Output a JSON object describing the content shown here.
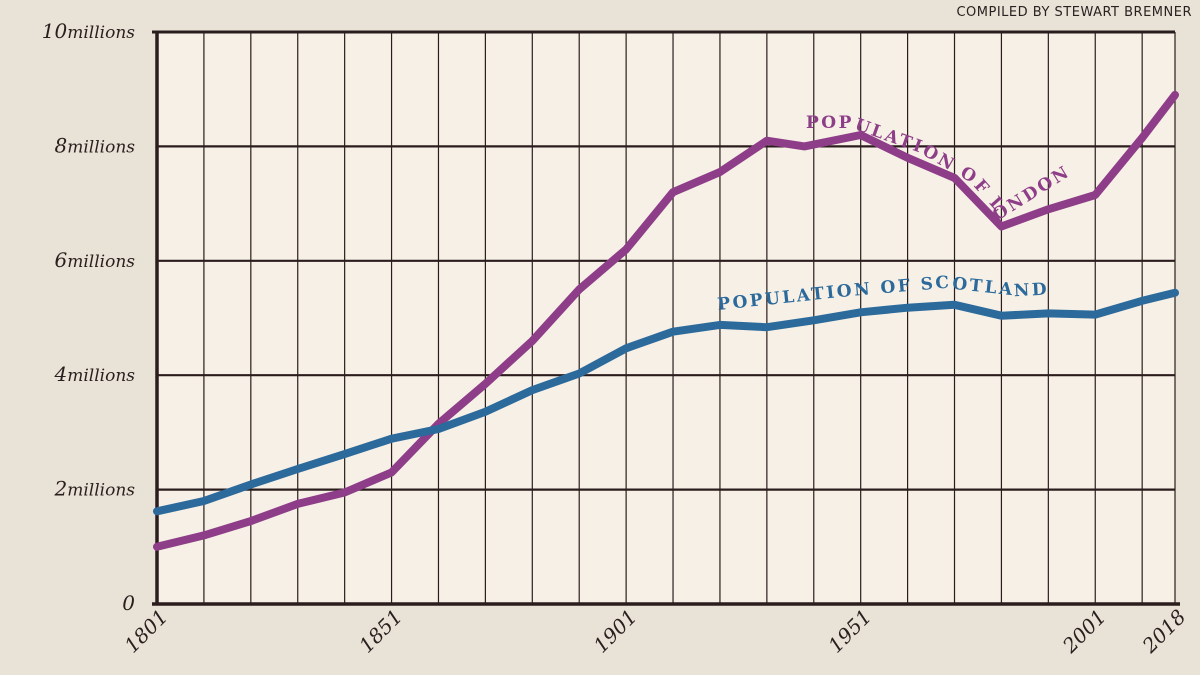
{
  "credit": "COMPILED BY STEWART BREMNER",
  "colors": {
    "background": "#e9e2d6",
    "plot_area": "#f6f0e6",
    "grid": "#2b1d1d",
    "london": "#8e3d88",
    "scotland": "#2c6a9c"
  },
  "chart_data": {
    "type": "line",
    "x_ticks": [
      {
        "value": 1801,
        "label": "1801"
      },
      {
        "value": 1851,
        "label": "1851"
      },
      {
        "value": 1901,
        "label": "1901"
      },
      {
        "value": 1951,
        "label": "1951"
      },
      {
        "value": 2001,
        "label": "2001"
      },
      {
        "value": 2018,
        "label": "2018"
      }
    ],
    "y_ticks": [
      {
        "value": 0,
        "num": "0",
        "unit": ""
      },
      {
        "value": 2,
        "num": "2",
        "unit": "millions"
      },
      {
        "value": 4,
        "num": "4",
        "unit": "millions"
      },
      {
        "value": 6,
        "num": "6",
        "unit": "millions"
      },
      {
        "value": 8,
        "num": "8",
        "unit": "millions"
      },
      {
        "value": 10,
        "num": "10",
        "unit": "millions"
      }
    ],
    "xlim": [
      1801,
      2018
    ],
    "ylim": [
      0,
      10
    ],
    "grid": true,
    "series": [
      {
        "name": "POPULATION OF LONDON",
        "color": "#8e3d88",
        "x": [
          1801,
          1811,
          1821,
          1831,
          1841,
          1851,
          1861,
          1871,
          1881,
          1891,
          1901,
          1911,
          1921,
          1931,
          1939,
          1951,
          1961,
          1971,
          1981,
          1991,
          2001,
          2011,
          2018
        ],
        "y": [
          1.0,
          1.2,
          1.45,
          1.75,
          1.95,
          2.3,
          3.15,
          3.85,
          4.6,
          5.5,
          6.2,
          7.2,
          7.55,
          8.1,
          8.0,
          8.2,
          7.8,
          7.45,
          6.6,
          6.9,
          7.15,
          8.15,
          8.9
        ]
      },
      {
        "name": "POPULATION OF SCOTLAND",
        "color": "#2c6a9c",
        "x": [
          1801,
          1811,
          1821,
          1831,
          1841,
          1851,
          1861,
          1871,
          1881,
          1891,
          1901,
          1911,
          1921,
          1931,
          1941,
          1951,
          1961,
          1971,
          1981,
          1991,
          2001,
          2011,
          2018
        ],
        "y": [
          1.62,
          1.8,
          2.09,
          2.36,
          2.62,
          2.89,
          3.06,
          3.36,
          3.74,
          4.03,
          4.47,
          4.76,
          4.88,
          4.84,
          4.96,
          5.1,
          5.18,
          5.23,
          5.04,
          5.08,
          5.06,
          5.3,
          5.44
        ]
      }
    ]
  }
}
